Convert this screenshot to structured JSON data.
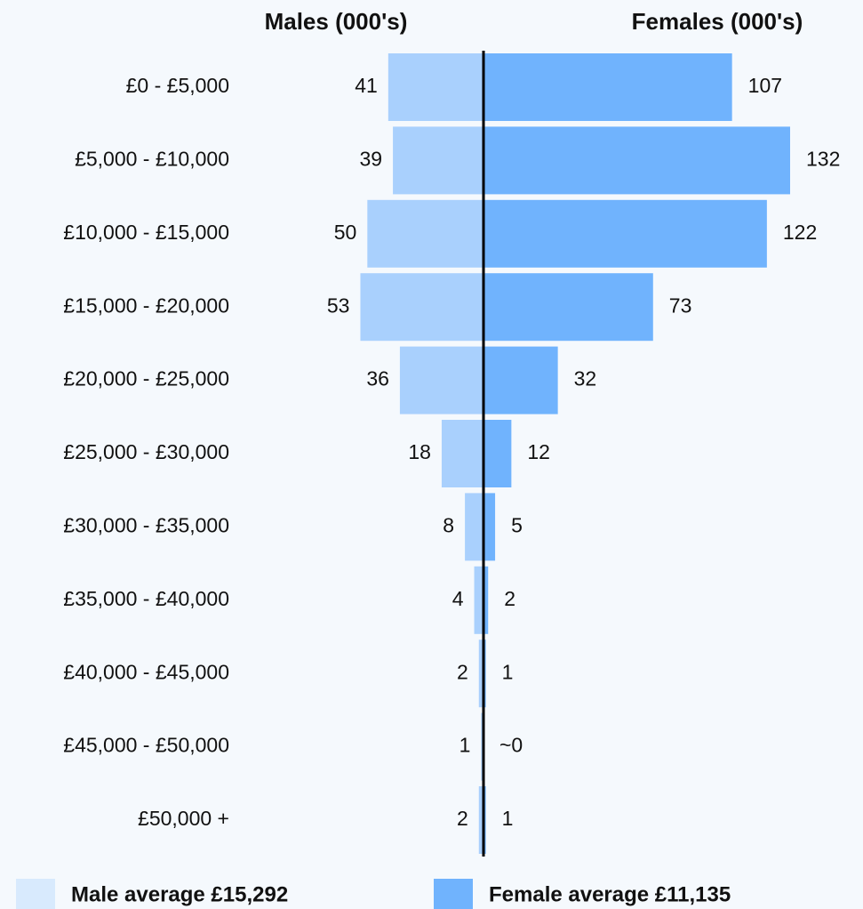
{
  "chart_data": {
    "type": "pyramid",
    "categories": [
      "£0 - £5,000",
      "£5,000 - £10,000",
      "£10,000 - £15,000",
      "£15,000 - £20,000",
      "£20,000 - £25,000",
      "£25,000 - £30,000",
      "£30,000 - £35,000",
      "£35,000 - £40,000",
      "£40,000 - £45,000",
      "£45,000 - £50,000",
      "£50,000 +"
    ],
    "series": [
      {
        "name": "Males (000's)",
        "color": "#a9d0fd",
        "side": "left",
        "values": [
          41,
          39,
          50,
          53,
          36,
          18,
          8,
          4,
          2,
          1,
          2
        ]
      },
      {
        "name": "Females (000's)",
        "color": "#70b3fd",
        "side": "right",
        "values": [
          107,
          132,
          122,
          73,
          32,
          12,
          5,
          2,
          1,
          0,
          1
        ],
        "value_labels": [
          "107",
          "132",
          "122",
          "73",
          "32",
          "12",
          "5",
          "2",
          "1",
          "~0",
          "1"
        ]
      }
    ],
    "legend": [
      {
        "label": "Male average £15,292",
        "color": "#d8eafd"
      },
      {
        "label": "Female average £11,135",
        "color": "#70b3fd"
      }
    ]
  }
}
